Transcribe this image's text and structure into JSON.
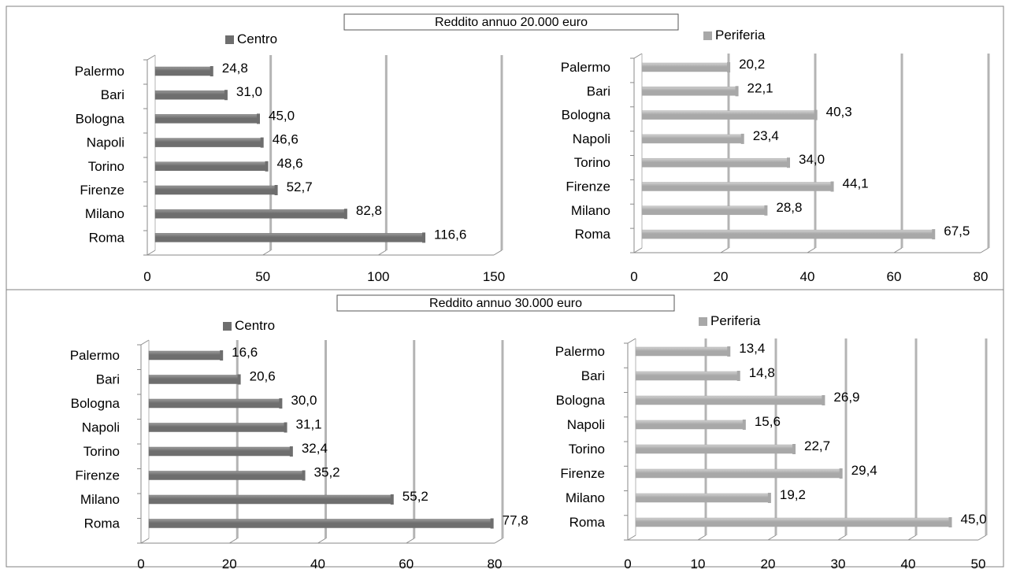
{
  "colors": {
    "centro": "#6e6e6e",
    "centro_light": "#9a9a9a",
    "periferia": "#a8a8a8",
    "periferia_light": "#d2d2d2",
    "grid": "#b4b4b4",
    "frame": "#8a8a8a"
  },
  "sections": [
    {
      "title": "Reddito annuo 20.000 euro"
    },
    {
      "title": "Reddito annuo 30.000 euro"
    }
  ],
  "chart_data": [
    {
      "type": "bar",
      "orientation": "horizontal",
      "section_title": "Reddito annuo 20.000 euro",
      "categories": [
        "Palermo",
        "Bari",
        "Bologna",
        "Napoli",
        "Torino",
        "Firenze",
        "Milano",
        "Roma"
      ],
      "series": [
        {
          "name": "Centro",
          "values": [
            24.8,
            31.0,
            45.0,
            46.6,
            48.6,
            52.7,
            82.8,
            116.6
          ]
        }
      ],
      "value_labels": [
        "24,8",
        "31,0",
        "45,0",
        "46,6",
        "48,6",
        "52,7",
        "82,8",
        "116,6"
      ],
      "xlim": [
        0,
        150
      ],
      "xticks": [
        0,
        50,
        100,
        150
      ],
      "xtick_labels": [
        "0",
        "50",
        "100",
        "150"
      ],
      "grid": true,
      "legend_position": "top"
    },
    {
      "type": "bar",
      "orientation": "horizontal",
      "section_title": "Reddito annuo 20.000 euro",
      "categories": [
        "Palermo",
        "Bari",
        "Bologna",
        "Napoli",
        "Torino",
        "Firenze",
        "Milano",
        "Roma"
      ],
      "series": [
        {
          "name": "Periferia",
          "values": [
            20.2,
            22.1,
            40.3,
            23.4,
            34.0,
            44.1,
            28.8,
            67.5
          ]
        }
      ],
      "value_labels": [
        "20,2",
        "22,1",
        "40,3",
        "23,4",
        "34,0",
        "44,1",
        "28,8",
        "67,5"
      ],
      "xlim": [
        0,
        80
      ],
      "xticks": [
        0,
        20,
        40,
        60,
        80
      ],
      "xtick_labels": [
        "0",
        "20",
        "40",
        "60",
        "80"
      ],
      "grid": true,
      "legend_position": "top"
    },
    {
      "type": "bar",
      "orientation": "horizontal",
      "section_title": "Reddito annuo 30.000 euro",
      "categories": [
        "Palermo",
        "Bari",
        "Bologna",
        "Napoli",
        "Torino",
        "Firenze",
        "Milano",
        "Roma"
      ],
      "series": [
        {
          "name": "Centro",
          "values": [
            16.6,
            20.6,
            30.0,
            31.1,
            32.4,
            35.2,
            55.2,
            77.8
          ]
        }
      ],
      "value_labels": [
        "16,6",
        "20,6",
        "30,0",
        "31,1",
        "32,4",
        "35,2",
        "55,2",
        "77,8"
      ],
      "xlim": [
        0,
        80
      ],
      "xticks": [
        0,
        20,
        40,
        60,
        80
      ],
      "xtick_labels": [
        "0",
        "20",
        "40",
        "60",
        "80"
      ],
      "grid": true,
      "legend_position": "top"
    },
    {
      "type": "bar",
      "orientation": "horizontal",
      "section_title": "Reddito annuo 30.000 euro",
      "categories": [
        "Palermo",
        "Bari",
        "Bologna",
        "Napoli",
        "Torino",
        "Firenze",
        "Milano",
        "Roma"
      ],
      "series": [
        {
          "name": "Periferia",
          "values": [
            13.4,
            14.8,
            26.9,
            15.6,
            22.7,
            29.4,
            19.2,
            45.0
          ]
        }
      ],
      "value_labels": [
        "13,4",
        "14,8",
        "26,9",
        "15,6",
        "22,7",
        "29,4",
        "19,2",
        "45,0"
      ],
      "xlim": [
        0,
        50
      ],
      "xticks": [
        0,
        10,
        20,
        30,
        40,
        50
      ],
      "xtick_labels": [
        "0",
        "10",
        "20",
        "30",
        "40",
        "50"
      ],
      "grid": true,
      "legend_position": "top"
    }
  ]
}
